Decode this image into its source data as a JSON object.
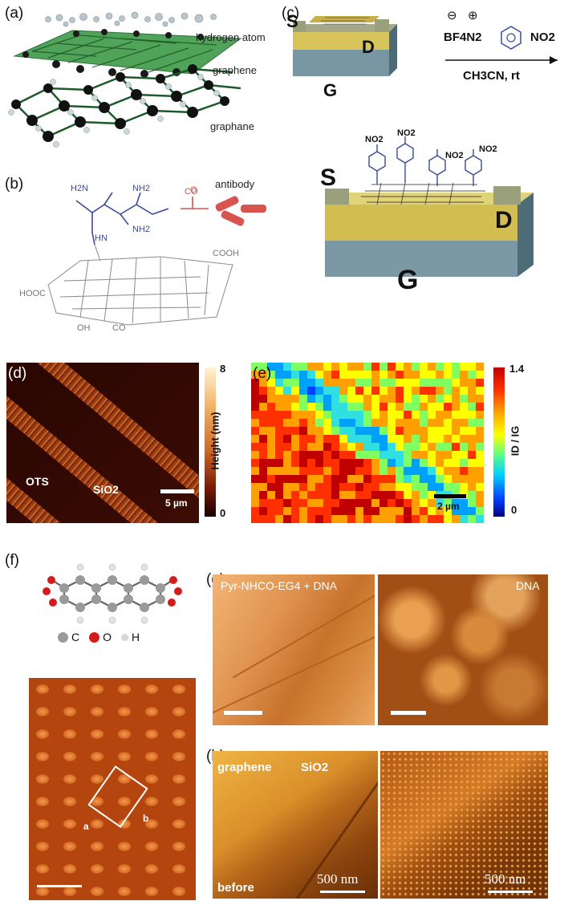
{
  "panels": {
    "a": {
      "label": "(a)",
      "annotations": [
        "hydrogen atom",
        "graphene",
        "graphane"
      ]
    },
    "b": {
      "label": "(b)",
      "antibody": "antibody",
      "groups": [
        "H2N",
        "NH2",
        "COOH",
        "HOOC",
        "OH",
        "CO",
        "HN",
        "CO",
        "O",
        "NH2"
      ]
    },
    "c": {
      "label": "(c)",
      "electrodes": {
        "source": "S",
        "drain": "D",
        "gate": "G"
      },
      "reagent_charges": [
        "⊖",
        "⊕"
      ],
      "reagent": "BF4N2",
      "substituent": "NO2",
      "conditions": "CH3CN, rt"
    },
    "d": {
      "label": "(d)",
      "colorbar_title": "Height (nm)",
      "colorbar_max": "8",
      "colorbar_min": "0",
      "labels": [
        "OTS",
        "SiO2"
      ],
      "scalebar": "5 µm"
    },
    "e": {
      "label": "(e)",
      "colorbar_title": "ID / IG",
      "colorbar_max": "1.4",
      "colorbar_min": "0",
      "scalebar": "2 µm"
    },
    "f": {
      "label": "(f)",
      "legend": [
        "C",
        "O",
        "H"
      ],
      "cell_labels": [
        "a",
        "b"
      ]
    },
    "g": {
      "label": "(g)",
      "left_title": "Pyr-NHCO-EG4 + DNA",
      "right_title": "DNA"
    },
    "h": {
      "label": "(h)",
      "labels": [
        "graphene",
        "SiO2",
        "before"
      ],
      "scalebar_left": "500 nm",
      "scalebar_right": "500 nm"
    }
  },
  "colors": {
    "graphene_green": "#2f8f3a",
    "gold": "#c9b046",
    "slate": "#6d8a96",
    "afm_dark": "#3a0c04",
    "afm_light": "#f5b46a",
    "link_blue": "#3a4aa0",
    "antibody_red": "#d9534f"
  }
}
